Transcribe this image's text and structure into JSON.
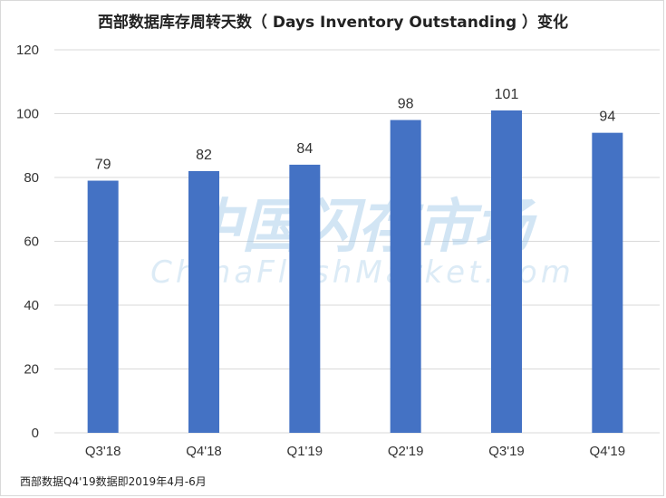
{
  "chart_data": {
    "type": "bar",
    "title": "西部数据库存周转天数（ Days Inventory Outstanding ）变化",
    "categories": [
      "Q3'18",
      "Q4'18",
      "Q1'19",
      "Q2'19",
      "Q3'19",
      "Q4'19"
    ],
    "values": [
      79,
      82,
      84,
      98,
      101,
      94
    ],
    "ylim": [
      0,
      120
    ],
    "yticks": [
      0,
      20,
      40,
      60,
      80,
      100,
      120
    ],
    "grid": true,
    "bar_color": "#4472C4",
    "grid_color": "#d9d9d9"
  },
  "footnote": "西部数据Q4'19数据即2019年4月-6月",
  "watermark": {
    "main": "中国闪存市场",
    "sub": "ChinaFlashMarket.com",
    "color": "#9cc6e6"
  }
}
